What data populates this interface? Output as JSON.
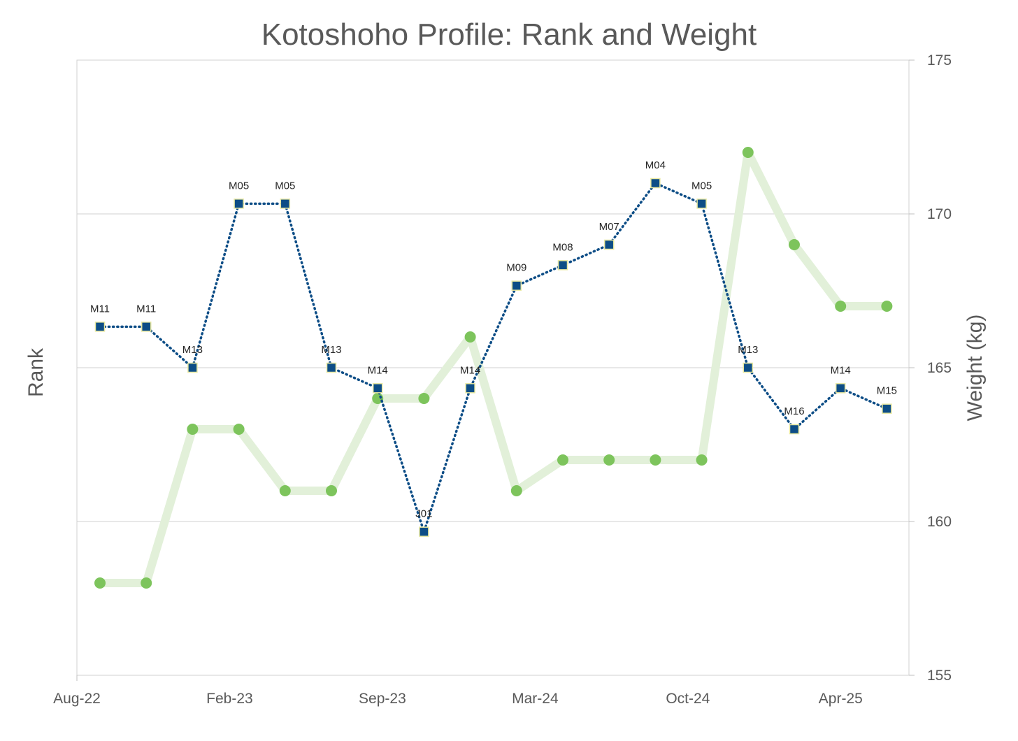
{
  "chart_data": {
    "type": "line",
    "title": "Kotoshoho Profile: Rank and Weight",
    "ylabel_left": "Rank",
    "ylabel_right": "Weight (kg)",
    "x_tick_labels": [
      "Aug-22",
      "Feb-23",
      "Sep-23",
      "Mar-24",
      "Oct-24",
      "Apr-25"
    ],
    "x_tick_positions": [
      0,
      3.3,
      6.6,
      9.9,
      13.2,
      16.5
    ],
    "y_right_range": [
      155,
      175
    ],
    "y_right_ticks": [
      155,
      160,
      165,
      170,
      175
    ],
    "grid": true,
    "series": [
      {
        "name": "Weight (kg)",
        "axis": "right",
        "color": "#7dc45c",
        "line_color": "#e2f0d9",
        "marker": "circle",
        "x": [
          0,
          1,
          2,
          3,
          4,
          5,
          6,
          7,
          8,
          9,
          10,
          11,
          12,
          13,
          14,
          15,
          16,
          17
        ],
        "values": [
          158,
          158,
          163,
          163,
          161,
          161,
          164,
          164,
          166,
          161,
          162,
          162,
          162,
          162,
          172,
          169,
          167,
          167
        ]
      },
      {
        "name": "Rank",
        "axis": "left",
        "color": "#0d4d86",
        "marker_edge": "#e8e8a0",
        "marker": "square",
        "line_style": "dotted",
        "x": [
          0,
          1,
          2,
          3,
          4,
          5,
          6,
          7,
          8,
          9,
          10,
          11,
          12,
          13,
          14,
          15,
          16,
          17
        ],
        "labels": [
          "M11",
          "M11",
          "M13",
          "M05",
          "M05",
          "M13",
          "M14",
          "J01",
          "M14",
          "M09",
          "M08",
          "M07",
          "M04",
          "M05",
          "M13",
          "M16",
          "M14",
          "M15"
        ],
        "rank_ordinal": [
          -11,
          -11,
          -13,
          -5,
          -5,
          -13,
          -14,
          -21,
          -14,
          -9,
          -8,
          -7,
          -4,
          -5,
          -13,
          -16,
          -14,
          -15
        ],
        "y_left_range": [
          -28,
          2
        ]
      }
    ]
  }
}
